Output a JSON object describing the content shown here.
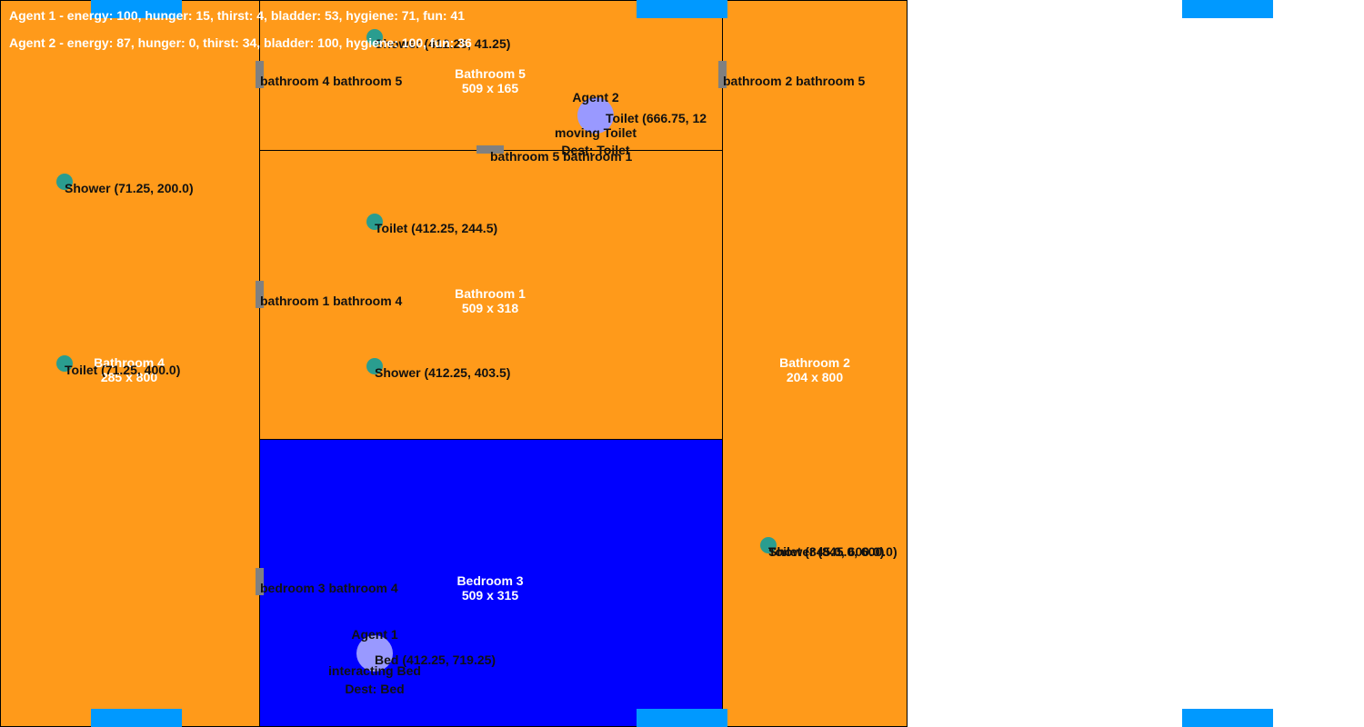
{
  "rooms": {
    "bathroom4": {
      "name": "Bathroom 4",
      "size": "285 x 800",
      "color": "#ff9a1a"
    },
    "bathroom5": {
      "name": "Bathroom 5",
      "size": "509 x 165",
      "color": "#ff9a1a"
    },
    "bathroom1": {
      "name": "Bathroom 1",
      "size": "509 x 318",
      "color": "#ff9a1a"
    },
    "bedroom3": {
      "name": "Bedroom 3",
      "size": "509 x 315",
      "color": "#0000ff"
    },
    "bathroom2": {
      "name": "Bathroom 2",
      "size": "204 x 800",
      "color": "#ff9a1a"
    }
  },
  "items": {
    "shower_b4": "Shower (71.25, 200.0)",
    "toilet_b4": "Toilet (71.25, 400.0)",
    "shower_b5": "Shower (412.25, 41.25)",
    "toilet_b5": "Toilet (666.75, 12",
    "toilet_b1": "Toilet (412.25, 244.5)",
    "shower_b1": "Shower (412.25, 403.5)",
    "bed_b3": "Bed (412.25, 719.25)",
    "toilet_b2": "Toilet (845.0, 600.0)",
    "shower_b2": "Shower (845.0, 600.0)"
  },
  "doors": {
    "b4_b5": "bathroom 4 bathroom 5",
    "b2_b5": "bathroom 2 bathroom 5",
    "b5_b1": "bathroom 5 bathroom 1",
    "b1_b4": "bathroom 1 bathroom 4",
    "bd3_b4": "bedroom 3 bathroom 4"
  },
  "agents": {
    "agent1": {
      "name": "Agent 1",
      "action": "interacting Bed",
      "dest": "Dest: Bed"
    },
    "agent2": {
      "name": "Agent 2",
      "action": "moving Toilet",
      "dest": "Dest: Toilet"
    }
  },
  "status": {
    "agent1": "Agent 1 - energy: 100, hunger: 15, thirst: 4, bladder: 53, hygiene: 71, fun: 41",
    "agent2": "Agent 2 - energy: 87, hunger: 0, thirst: 34, bladder: 100, hygiene: 100, fun: 36"
  },
  "colors": {
    "window": "#0099ff",
    "item": "#2a9d8f",
    "agent": "#9999ff",
    "door": "#808080"
  }
}
